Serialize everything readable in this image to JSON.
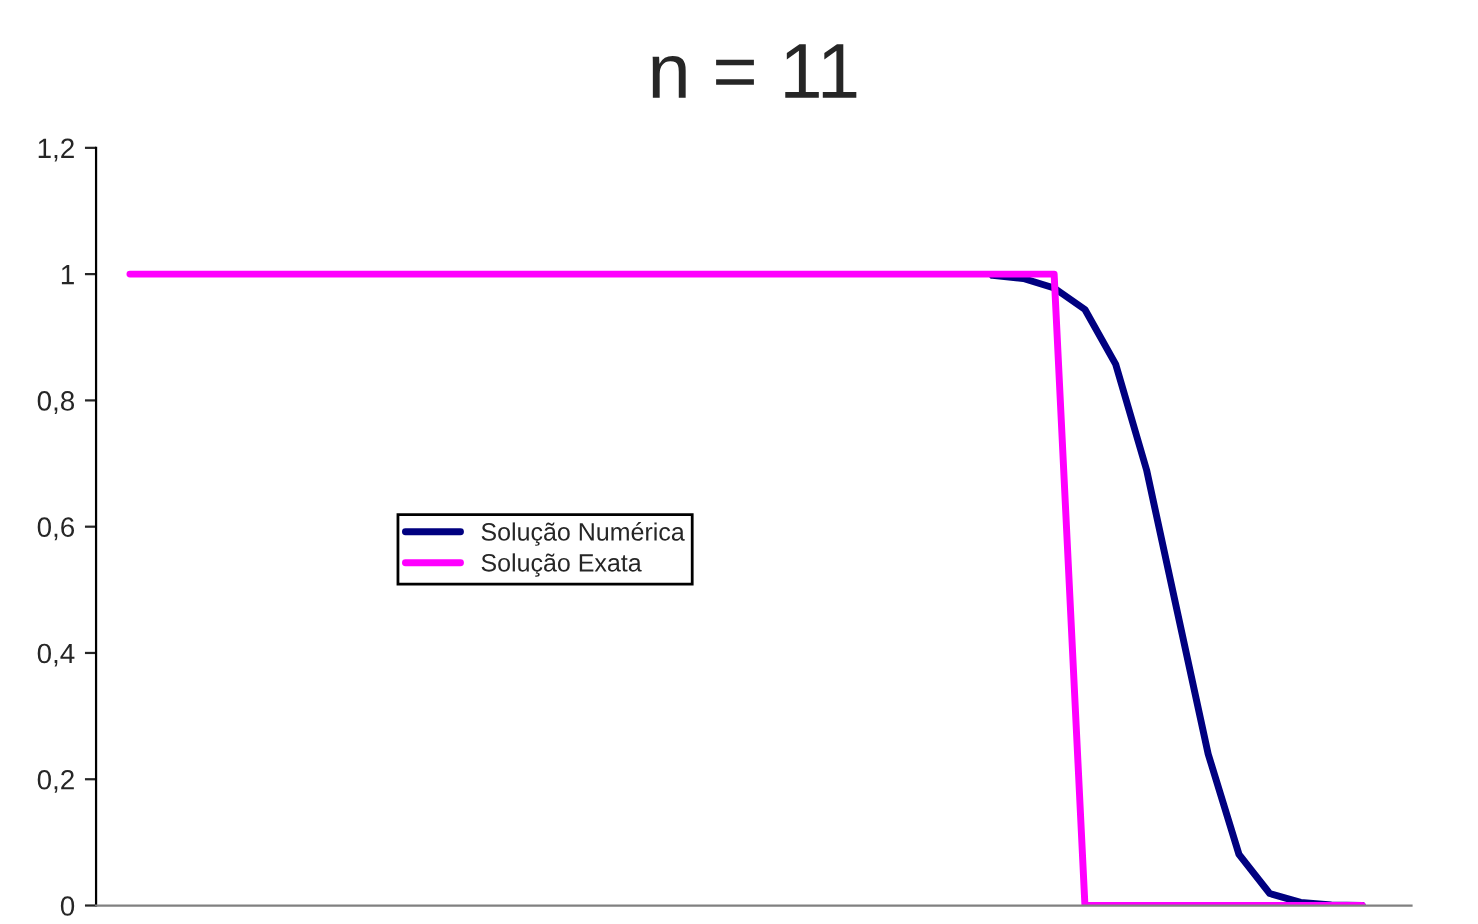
{
  "chart_data": {
    "type": "line",
    "title": "n = 11",
    "categories": [
      null,
      null,
      null,
      null,
      null,
      null,
      null,
      null,
      null,
      null,
      null,
      null,
      null,
      null,
      null,
      null,
      null,
      null,
      null,
      null,
      null,
      null,
      null,
      null,
      null,
      null,
      null,
      null,
      null,
      null,
      null,
      null,
      null,
      null,
      null,
      null,
      null,
      null,
      null,
      null,
      null
    ],
    "series": [
      {
        "name": "Solução Numérica",
        "color": "#000080",
        "values": [
          null,
          null,
          null,
          null,
          null,
          null,
          null,
          null,
          null,
          null,
          null,
          null,
          null,
          null,
          null,
          null,
          null,
          null,
          null,
          null,
          null,
          null,
          null,
          null,
          null,
          null,
          null,
          null,
          0.998,
          0.993,
          0.978,
          0.944,
          0.857,
          0.69,
          0.465,
          0.24,
          0.081,
          0.019,
          0.005,
          0.001,
          0
        ]
      },
      {
        "name": "Solução Exata",
        "color": "#ff00ff",
        "values": [
          1,
          1,
          1,
          1,
          1,
          1,
          1,
          1,
          1,
          1,
          1,
          1,
          1,
          1,
          1,
          1,
          1,
          1,
          1,
          1,
          1,
          1,
          1,
          1,
          1,
          1,
          1,
          1,
          1,
          1,
          1,
          0,
          0,
          0,
          0,
          0,
          0,
          0,
          0,
          0,
          0
        ]
      }
    ],
    "ylim": [
      0,
      1.2
    ],
    "yticks": [
      {
        "value": 0,
        "label": "0"
      },
      {
        "value": 0.2,
        "label": "0,2"
      },
      {
        "value": 0.4,
        "label": "0,4"
      },
      {
        "value": 0.6,
        "label": "0,6"
      },
      {
        "value": 0.8,
        "label": "0,8"
      },
      {
        "value": 1,
        "label": "1"
      },
      {
        "value": 1.2,
        "label": "1,2"
      }
    ],
    "tick_labels": "y",
    "grid": false,
    "legend": "left",
    "marker": "none",
    "line_style": "solid"
  }
}
